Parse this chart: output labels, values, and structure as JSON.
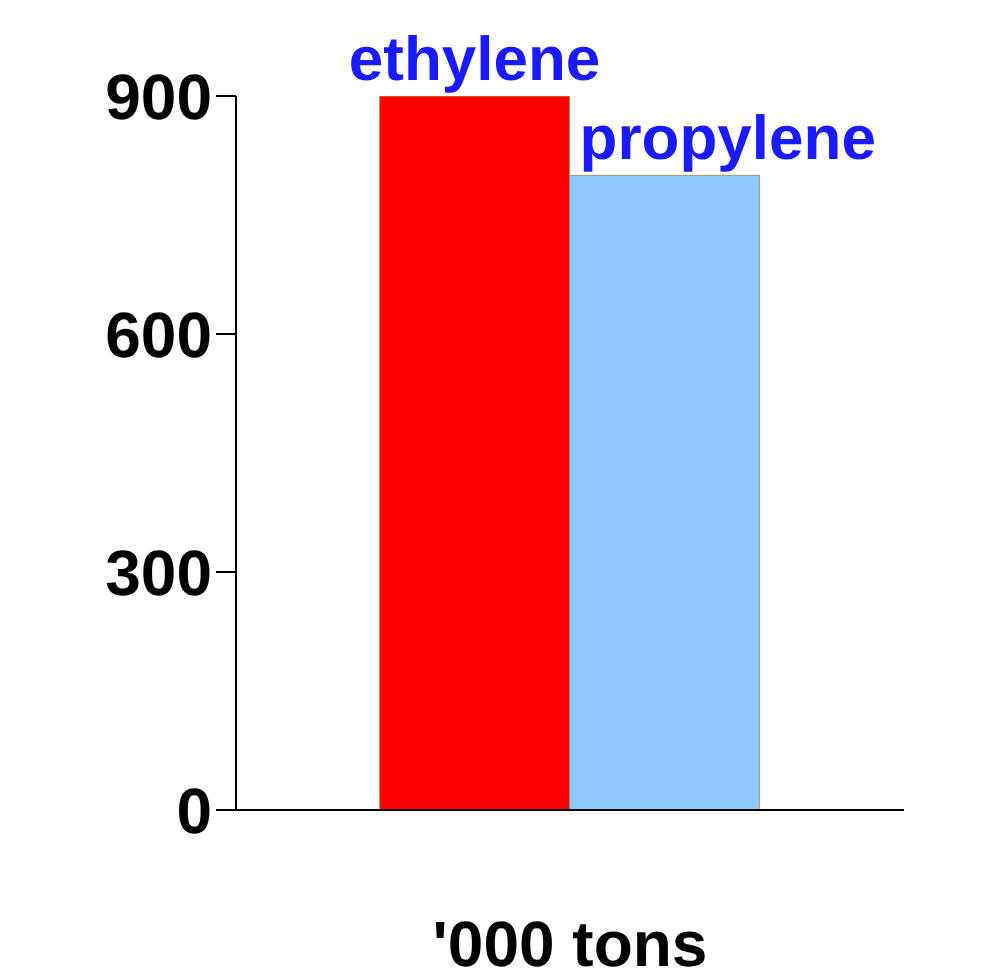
{
  "chart_data": {
    "type": "bar",
    "xlabel": "'000 tons",
    "categories": [
      null
    ],
    "series": [
      {
        "name": "ethylene",
        "color": "#ff0000",
        "values": [
          900
        ]
      },
      {
        "name": "propylene",
        "color": "#8fc8ff",
        "values": [
          800
        ]
      }
    ],
    "ylim": [
      0,
      900
    ],
    "yticks": [
      0,
      300,
      600,
      900
    ],
    "grid": false,
    "legend": false
  }
}
